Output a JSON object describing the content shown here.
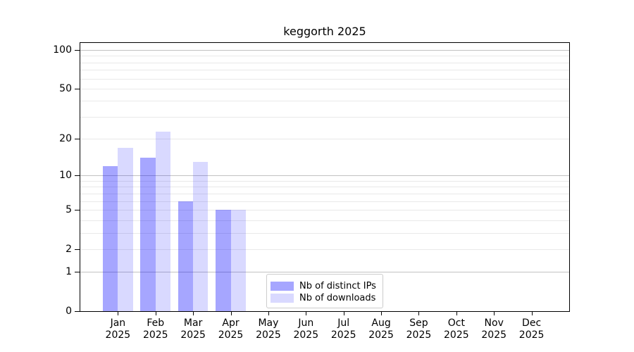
{
  "chart_data": {
    "type": "bar",
    "title": "keggorth 2025",
    "categories": [
      "Jan 2025",
      "Feb 2025",
      "Mar 2025",
      "Apr 2025",
      "May 2025",
      "Jun 2025",
      "Jul 2025",
      "Aug 2025",
      "Sep 2025",
      "Oct 2025",
      "Nov 2025",
      "Dec 2025"
    ],
    "series": [
      {
        "name": "Nb of distinct IPs",
        "color": "rgba(0,0,255,0.35)",
        "values": [
          12,
          14,
          6,
          5,
          null,
          null,
          null,
          null,
          null,
          null,
          null,
          null
        ]
      },
      {
        "name": "Nb of downloads",
        "color": "rgba(0,0,255,0.15)",
        "values": [
          17,
          23,
          13,
          5,
          null,
          null,
          null,
          null,
          null,
          null,
          null,
          null
        ]
      }
    ],
    "xlabel": "",
    "ylabel": "",
    "yscale": "log1p",
    "ylim": [
      0,
      113
    ],
    "yticks": [
      0,
      1,
      2,
      5,
      10,
      20,
      50,
      100
    ],
    "major_yticks": [
      1,
      10,
      100
    ],
    "minor_yticks": [
      2,
      3,
      4,
      5,
      6,
      7,
      8,
      9,
      20,
      30,
      40,
      50,
      60,
      70,
      80,
      90
    ],
    "grid": true,
    "legend": {
      "items": [
        "Nb of distinct IPs",
        "Nb of downloads"
      ],
      "position": "lower center"
    },
    "colors": {
      "axis": "#000000",
      "text": "#000000",
      "major_grid": "#c2c2c2",
      "minor_grid": "#e9e9e9",
      "legend_border": "#cccccc",
      "background": "#ffffff"
    }
  }
}
